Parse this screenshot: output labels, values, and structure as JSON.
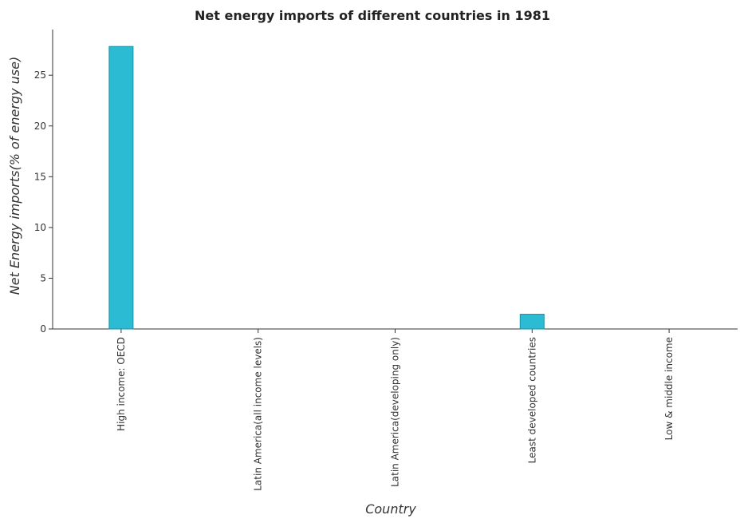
{
  "chart_data": {
    "type": "bar",
    "title": "Net energy imports of different countries in 1981",
    "xlabel": "Country",
    "ylabel": "Net Energy imports(% of energy use)",
    "categories": [
      "High income: OECD",
      "Latin America(all income levels)",
      "Latin America(developing only)",
      "Least developed countries",
      "Low & middle income"
    ],
    "values": [
      27.83,
      0,
      0,
      1.45,
      0
    ],
    "ylim": [
      0,
      29.5
    ],
    "yticks": [
      0,
      5,
      10,
      15,
      20,
      25
    ],
    "bar_color": "#2bbcd4",
    "bar_edge_color": "#1a8fa3",
    "grid": false,
    "legend": "none"
  }
}
